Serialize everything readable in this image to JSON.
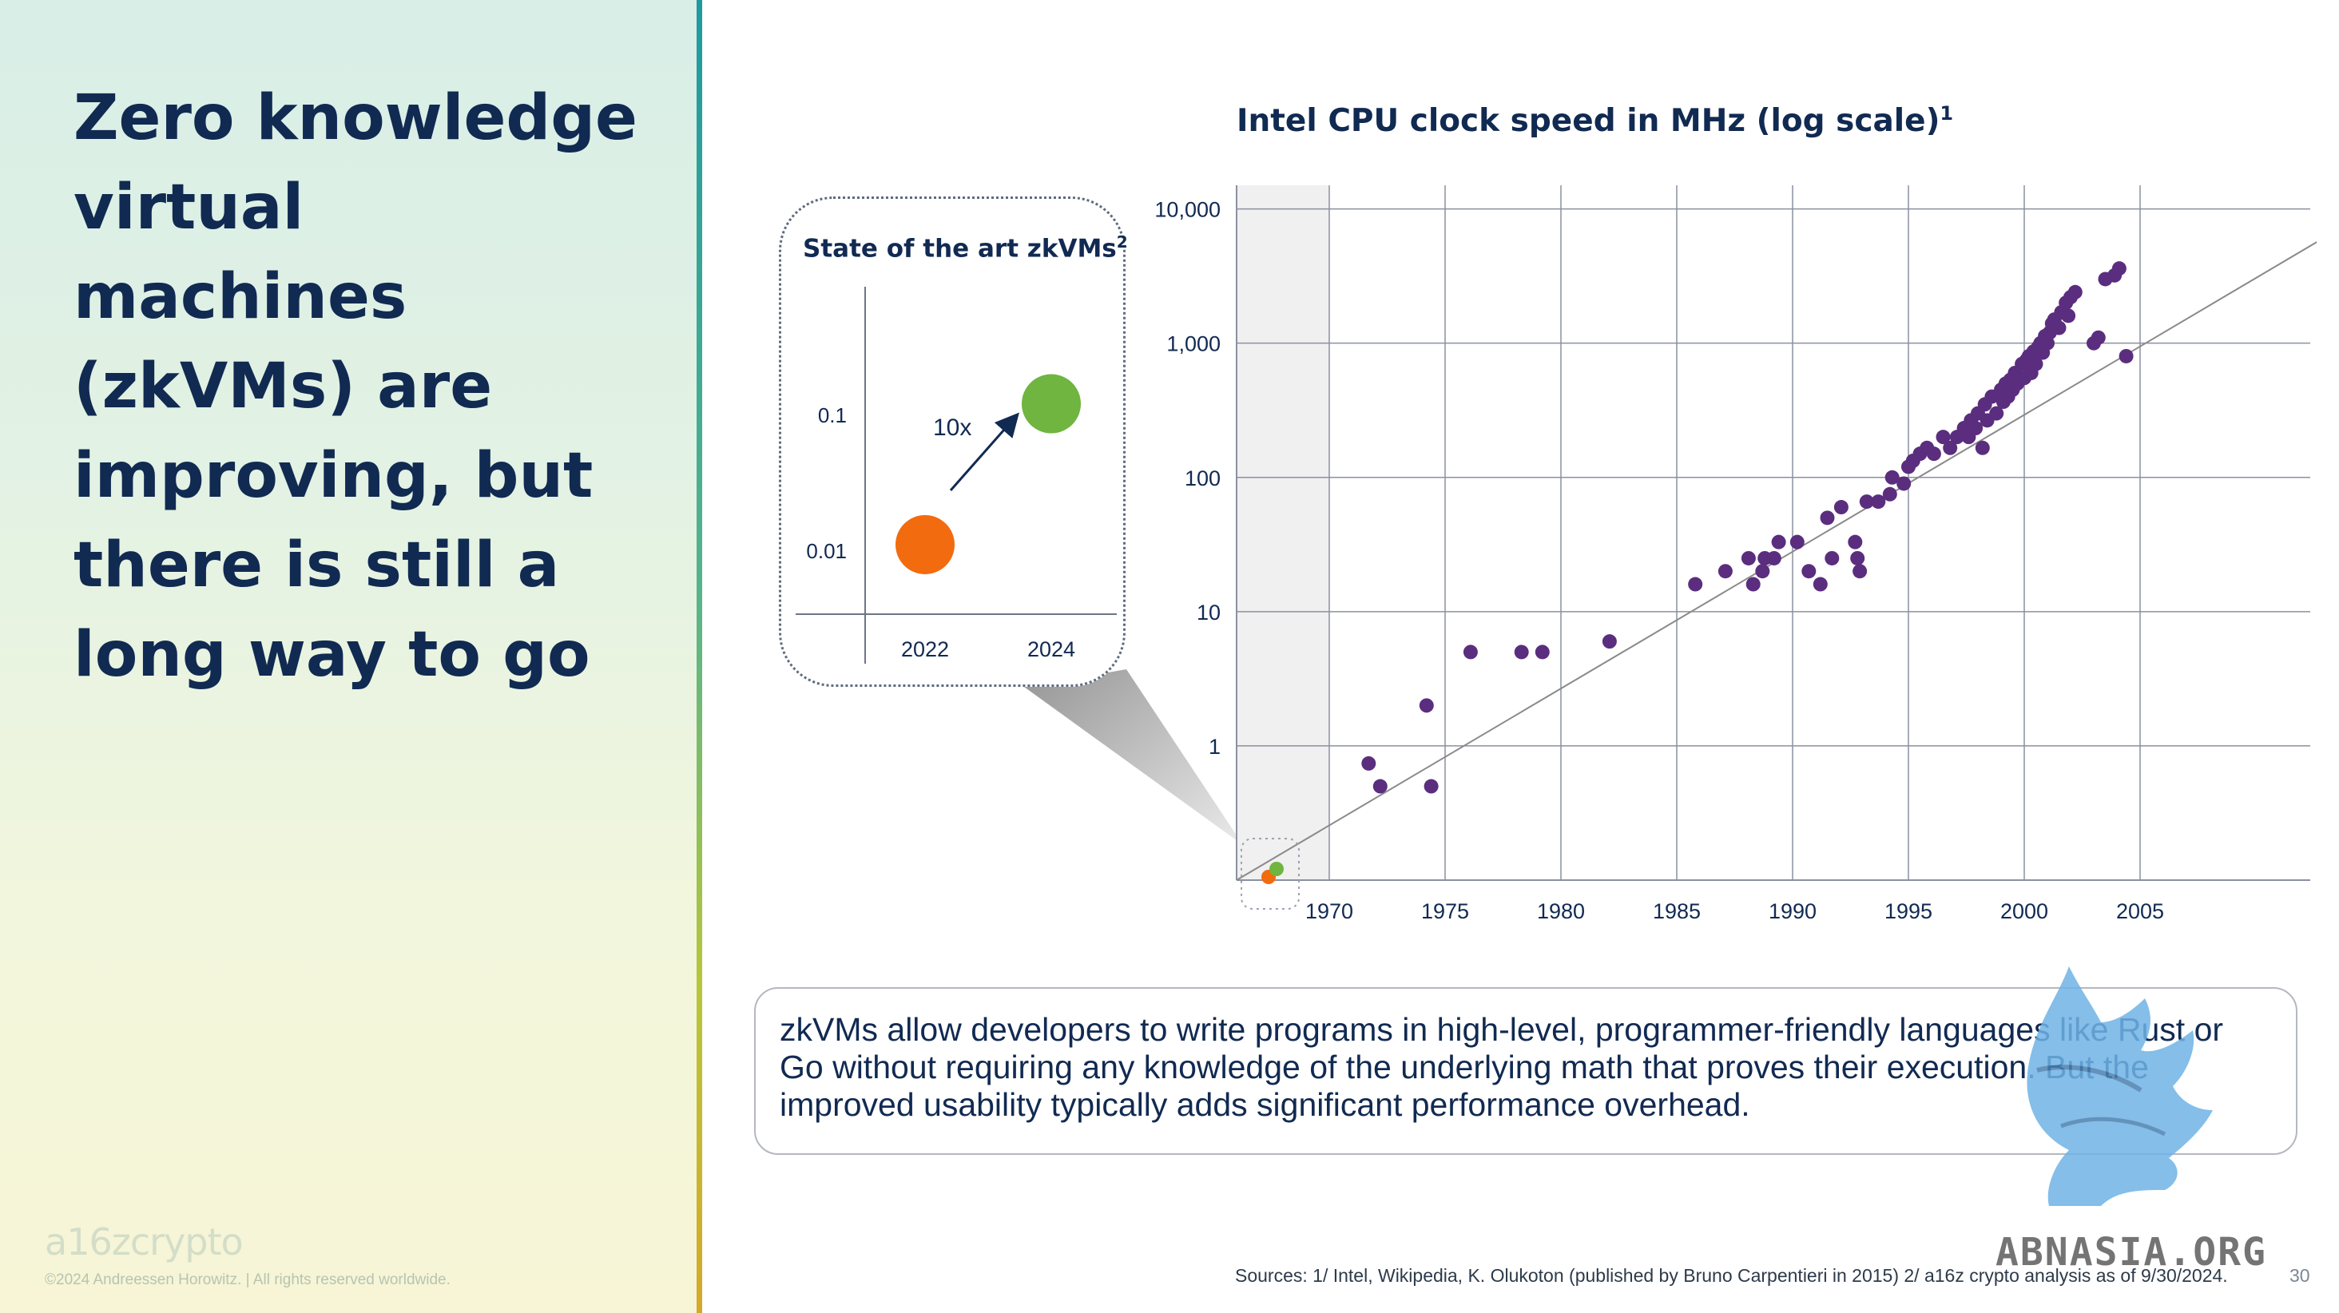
{
  "headline": "Zero knowledge virtual machines (zkVMs) are improving, but there is still a long way to go",
  "brand": {
    "logo_text": "a16zcrypto",
    "copyright": "©2024 Andreessen Horowitz.  |  All rights reserved worldwide."
  },
  "colors": {
    "navy": "#112a52",
    "purple": "#5b2d7e",
    "orange": "#f26b0f",
    "green": "#6fb53f",
    "grid": "#8a90a0"
  },
  "main_chart": {
    "title": "Intel CPU clock speed in MHz (log scale)",
    "title_sup": "1"
  },
  "inset": {
    "title": "State of the art zkVMs",
    "title_sup": "2",
    "annotation": "10x"
  },
  "description": "zkVMs allow developers to write programs in high-level, programmer-friendly languages like Rust or Go without requiring any knowledge of the underlying math that proves their execution. But the improved usability typically adds significant performance overhead.",
  "sources": "Sources: 1/ Intel, Wikipedia, K. Olukoton (published by Bruno Carpentieri in 2015) 2/ a16z crypto analysis as of 9/30/2024.",
  "page_number": "30",
  "watermark": "ABNASIA.ORG",
  "chart_data": [
    {
      "type": "scatter",
      "title": "Intel CPU clock speed in MHz (log scale)",
      "y_scale": "log",
      "ylim": [
        0.1,
        15000
      ],
      "xlim": [
        1966,
        2012
      ],
      "x_ticks": [
        1970,
        1975,
        1980,
        1985,
        1990,
        1995,
        2000,
        2005
      ],
      "y_ticks": [
        1,
        10,
        100,
        1000,
        10000
      ],
      "y_tick_labels": [
        "1",
        "10",
        "100",
        "1,000",
        "10,000"
      ],
      "grid": true,
      "shaded_region_x": [
        1966,
        1970
      ],
      "series": [
        {
          "color": "#5b2d7e",
          "points": [
            [
              1971.7,
              0.74
            ],
            [
              1972.2,
              0.5
            ],
            [
              1974.2,
              2.0
            ],
            [
              1974.4,
              0.5
            ],
            [
              1976.1,
              5.0
            ],
            [
              1978.3,
              5.0
            ],
            [
              1979.2,
              5.0
            ],
            [
              1982.1,
              6.0
            ],
            [
              1985.8,
              16
            ],
            [
              1987.1,
              20
            ],
            [
              1988.1,
              25
            ],
            [
              1988.3,
              16
            ],
            [
              1988.7,
              20
            ],
            [
              1988.8,
              25
            ],
            [
              1989.2,
              25
            ],
            [
              1989.4,
              33
            ],
            [
              1990.2,
              33
            ],
            [
              1990.7,
              20
            ],
            [
              1991.2,
              16
            ],
            [
              1991.5,
              50
            ],
            [
              1991.7,
              25
            ],
            [
              1992.1,
              60
            ],
            [
              1992.7,
              33
            ],
            [
              1992.8,
              25
            ],
            [
              1992.9,
              20
            ],
            [
              1993.2,
              66
            ],
            [
              1993.7,
              66
            ],
            [
              1994.2,
              75
            ],
            [
              1994.3,
              100
            ],
            [
              1994.8,
              90
            ],
            [
              1995.0,
              120
            ],
            [
              1995.2,
              133
            ],
            [
              1995.5,
              150
            ],
            [
              1995.8,
              166
            ],
            [
              1996.1,
              150
            ],
            [
              1996.5,
              200
            ],
            [
              1996.8,
              166
            ],
            [
              1997.1,
              200
            ],
            [
              1997.4,
              233
            ],
            [
              1997.6,
              200
            ],
            [
              1997.7,
              266
            ],
            [
              1997.9,
              233
            ],
            [
              1998.0,
              300
            ],
            [
              1998.2,
              166
            ],
            [
              1998.3,
              350
            ],
            [
              1998.4,
              266
            ],
            [
              1998.6,
              400
            ],
            [
              1998.8,
              300
            ],
            [
              1999.0,
              450
            ],
            [
              1999.1,
              366
            ],
            [
              1999.2,
              500
            ],
            [
              1999.3,
              400
            ],
            [
              1999.4,
              533
            ],
            [
              1999.5,
              450
            ],
            [
              1999.6,
              600
            ],
            [
              1999.7,
              500
            ],
            [
              1999.9,
              700
            ],
            [
              2000.0,
              550
            ],
            [
              2000.1,
              750
            ],
            [
              2000.2,
              800
            ],
            [
              2000.3,
              600
            ],
            [
              2000.4,
              866
            ],
            [
              2000.5,
              700
            ],
            [
              2000.6,
              933
            ],
            [
              2000.7,
              1000
            ],
            [
              2000.8,
              850
            ],
            [
              2000.9,
              1130
            ],
            [
              2001.0,
              1000
            ],
            [
              2001.1,
              1200
            ],
            [
              2001.2,
              1400
            ],
            [
              2001.3,
              1500
            ],
            [
              2001.5,
              1300
            ],
            [
              2001.6,
              1700
            ],
            [
              2001.8,
              2000
            ],
            [
              2001.9,
              1600
            ],
            [
              2002.0,
              2200
            ],
            [
              2002.2,
              2400
            ],
            [
              2003.0,
              1000
            ],
            [
              2003.2,
              1100
            ],
            [
              2003.5,
              3000
            ],
            [
              2003.9,
              3200
            ],
            [
              2004.1,
              3600
            ],
            [
              2004.4,
              800
            ]
          ]
        }
      ],
      "trend_line": [
        [
          1966,
          0.1
        ],
        [
          2012.8,
          5900
        ]
      ],
      "inset_markers": [
        {
          "color": "#f26b0f"
        },
        {
          "color": "#6fb53f"
        }
      ]
    },
    {
      "type": "scatter",
      "title": "State of the art zkVMs",
      "y_scale": "log",
      "x_ticks": [
        "2022",
        "2024"
      ],
      "y_ticks": [
        0.01,
        0.1
      ],
      "y_tick_labels": [
        "0.01",
        "0.1"
      ],
      "annotation": "10x",
      "points": [
        {
          "x": "2022",
          "y": 0.011,
          "color": "#f26b0f"
        },
        {
          "x": "2024",
          "y": 0.12,
          "color": "#6fb53f"
        }
      ]
    }
  ]
}
